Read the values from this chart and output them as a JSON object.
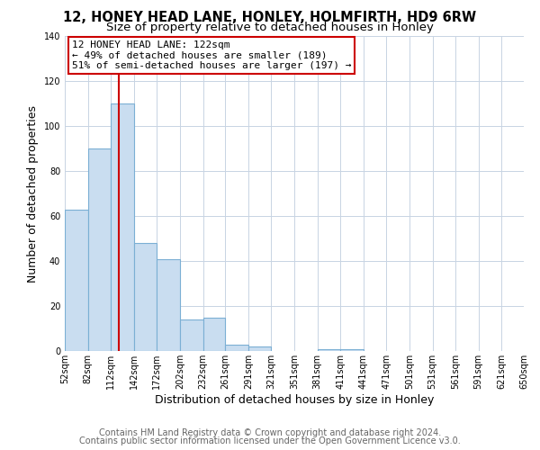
{
  "title1": "12, HONEY HEAD LANE, HONLEY, HOLMFIRTH, HD9 6RW",
  "title2": "Size of property relative to detached houses in Honley",
  "xlabel": "Distribution of detached houses by size in Honley",
  "ylabel": "Number of detached properties",
  "bin_edges": [
    52,
    82,
    112,
    142,
    172,
    202,
    232,
    261,
    291,
    321,
    351,
    381,
    411,
    441,
    471,
    501,
    531,
    561,
    591,
    621,
    650
  ],
  "bar_heights": [
    63,
    90,
    110,
    48,
    41,
    14,
    15,
    3,
    2,
    0,
    0,
    1,
    1,
    0,
    0,
    0,
    0,
    0,
    0,
    0
  ],
  "bar_color": "#c9ddf0",
  "bar_edgecolor": "#7bafd4",
  "grid_color": "#c8d4e3",
  "vline_x": 122,
  "vline_color": "#cc0000",
  "ylim": [
    0,
    140
  ],
  "yticks": [
    0,
    20,
    40,
    60,
    80,
    100,
    120,
    140
  ],
  "annotation_title": "12 HONEY HEAD LANE: 122sqm",
  "annotation_line1": "← 49% of detached houses are smaller (189)",
  "annotation_line2": "51% of semi-detached houses are larger (197) →",
  "annotation_box_edgecolor": "#cc0000",
  "footer1": "Contains HM Land Registry data © Crown copyright and database right 2024.",
  "footer2": "Contains public sector information licensed under the Open Government Licence v3.0.",
  "background_color": "#ffffff",
  "title1_fontsize": 10.5,
  "title2_fontsize": 9.5,
  "axis_label_fontsize": 9,
  "tick_fontsize": 7,
  "annotation_fontsize": 8,
  "footer_fontsize": 7
}
